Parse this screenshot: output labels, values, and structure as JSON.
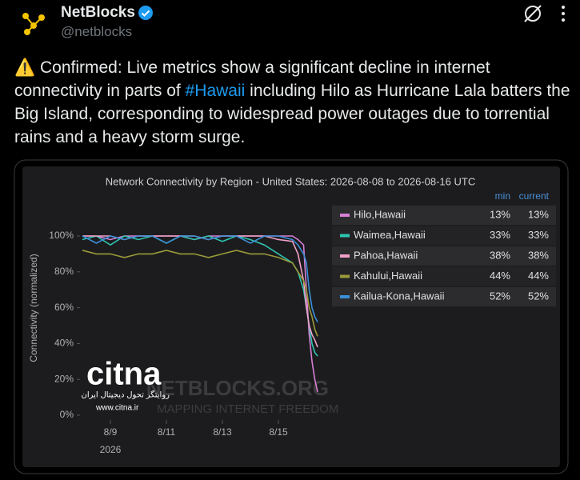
{
  "header": {
    "name": "NetBlocks",
    "handle": "@netblocks"
  },
  "tweet": {
    "text_before": "⚠️ Confirmed: Live metrics show a significant decline in internet connectivity in parts of ",
    "hashtag": "#Hawaii",
    "text_after": " including Hilo as Hurricane Lala batters the Big Island, corresponding to widespread power outages due to torrential rains and a heavy storm surge."
  },
  "chart_data": {
    "type": "line",
    "title": "Network Connectivity by Region - United States: 2026-08-08 to 2026-08-16 UTC",
    "y_label": "Connectivity (normalized)",
    "x_year": "2026",
    "x": [
      0,
      0.5,
      1,
      1.5,
      2,
      2.5,
      3,
      3.5,
      4,
      4.5,
      5,
      5.5,
      6,
      6.5,
      7,
      7.5,
      7.7,
      7.9,
      8.0,
      8.1,
      8.2,
      8.3,
      8.4
    ],
    "xlim": [
      0,
      8.4
    ],
    "xticks": [
      {
        "value": 1,
        "label": "8/9"
      },
      {
        "value": 3,
        "label": "8/11"
      },
      {
        "value": 5,
        "label": "8/13"
      },
      {
        "value": 7,
        "label": "8/15"
      }
    ],
    "ylim": [
      0,
      100
    ],
    "yticks": [
      {
        "value": 0,
        "label": "0%"
      },
      {
        "value": 20,
        "label": "20%"
      },
      {
        "value": 40,
        "label": "40%"
      },
      {
        "value": 60,
        "label": "60%"
      },
      {
        "value": 80,
        "label": "80%"
      },
      {
        "value": 100,
        "label": "100%"
      }
    ],
    "grid": false,
    "legend_columns": [
      "min",
      "current"
    ],
    "series": [
      {
        "name": "Hilo,Hawaii",
        "color": "#d77fd6",
        "stats": {
          "min": 13,
          "current": 13
        },
        "stats_labels": {
          "min": "13%",
          "current": "13%"
        },
        "values": [
          100,
          100,
          98,
          100,
          100,
          100,
          100,
          100,
          98,
          100,
          100,
          100,
          100,
          100,
          100,
          100,
          98,
          95,
          70,
          45,
          30,
          20,
          13
        ]
      },
      {
        "name": "Waimea,Hawaii",
        "color": "#2ec4b0",
        "stats": {
          "min": 33,
          "current": 33
        },
        "stats_labels": {
          "min": "33%",
          "current": "33%"
        },
        "values": [
          98,
          100,
          95,
          100,
          98,
          100,
          96,
          100,
          98,
          100,
          97,
          100,
          98,
          95,
          90,
          85,
          80,
          70,
          60,
          50,
          40,
          35,
          33
        ]
      },
      {
        "name": "Pahoa,Hawaii",
        "color": "#f0a0c8",
        "stats": {
          "min": 38,
          "current": 38
        },
        "stats_labels": {
          "min": "38%",
          "current": "38%"
        },
        "values": [
          100,
          100,
          100,
          98,
          100,
          100,
          100,
          100,
          100,
          98,
          100,
          100,
          100,
          100,
          98,
          97,
          90,
          75,
          60,
          50,
          45,
          42,
          38
        ]
      },
      {
        "name": "Kahului,Hawaii",
        "color": "#9a9a3a",
        "stats": {
          "min": 44,
          "current": 44
        },
        "stats_labels": {
          "min": "44%",
          "current": "44%"
        },
        "values": [
          92,
          90,
          90,
          88,
          90,
          90,
          92,
          90,
          90,
          88,
          90,
          92,
          90,
          90,
          88,
          85,
          80,
          75,
          70,
          60,
          55,
          48,
          44
        ]
      },
      {
        "name": "Kailua-Kona,Hawaii",
        "color": "#3a8fd8",
        "stats": {
          "min": 52,
          "current": 52
        },
        "stats_labels": {
          "min": "52%",
          "current": "52%"
        },
        "values": [
          100,
          96,
          100,
          98,
          100,
          100,
          96,
          100,
          100,
          98,
          100,
          100,
          96,
          100,
          100,
          98,
          95,
          90,
          85,
          70,
          60,
          55,
          52
        ]
      }
    ]
  },
  "watermark": {
    "site": "NETBLOCKS.ORG",
    "motto": "MAPPING INTERNET FREEDOM"
  },
  "overlay": {
    "brand": "citna",
    "slogan": "روایتگر تحول دیجیتال ایران",
    "url": "www.citna.ir"
  }
}
